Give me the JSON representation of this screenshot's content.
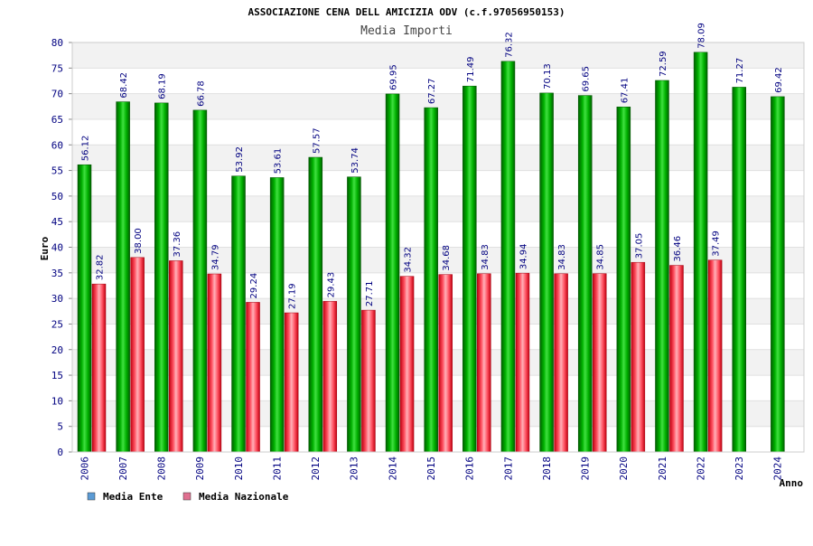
{
  "chart_data": {
    "type": "bar",
    "title": "ASSOCIAZIONE CENA DELL AMICIZIA ODV (c.f.97056950153)",
    "subtitle": "Media Importi",
    "ylabel": "Euro",
    "xlabel": "Anno",
    "ylim": [
      0,
      80
    ],
    "yticks": [
      0,
      5,
      10,
      15,
      20,
      25,
      30,
      35,
      40,
      45,
      50,
      55,
      60,
      65,
      70,
      75,
      80
    ],
    "categories": [
      "2006",
      "2007",
      "2008",
      "2009",
      "2010",
      "2011",
      "2012",
      "2013",
      "2014",
      "2015",
      "2016",
      "2017",
      "2018",
      "2019",
      "2020",
      "2021",
      "2022",
      "2023",
      "2024"
    ],
    "series": [
      {
        "name": "Media Ente",
        "color": "#00a000",
        "values": [
          56.12,
          68.42,
          68.19,
          66.78,
          53.92,
          53.61,
          57.57,
          53.74,
          69.95,
          67.27,
          71.49,
          76.32,
          70.13,
          69.65,
          67.41,
          72.59,
          78.09,
          71.27,
          69.42
        ],
        "labels": [
          "56.12",
          "68.42",
          "68.19",
          "66.78",
          "53.92",
          "53.61",
          "57.57",
          "53.74",
          "69.95",
          "67.27",
          "71.49",
          "76.32",
          "70.13",
          "69.65",
          "67.41",
          "72.59",
          "78.09",
          "71.27",
          "69.42"
        ]
      },
      {
        "name": "Media Nazionale",
        "color": "#e02030",
        "values": [
          32.82,
          38.0,
          37.36,
          34.79,
          29.24,
          27.19,
          29.43,
          27.71,
          34.32,
          34.68,
          34.83,
          34.94,
          34.83,
          34.85,
          37.05,
          36.46,
          37.49,
          null,
          null
        ],
        "labels": [
          "32.82",
          "38.00",
          "37.36",
          "34.79",
          "29.24",
          "27.19",
          "29.43",
          "27.71",
          "34.32",
          "34.68",
          "34.83",
          "34.94",
          "34.83",
          "34.85",
          "37.05",
          "36.46",
          "37.49",
          null,
          null
        ]
      }
    ],
    "legend": {
      "placement": "bottom-left",
      "items": [
        {
          "label": "Media Ente",
          "color": "#5b9bd5"
        },
        {
          "label": "Media Nazionale",
          "color": "#e07090"
        }
      ]
    },
    "grid": true,
    "grid_band_color": "#f2f2f2"
  }
}
